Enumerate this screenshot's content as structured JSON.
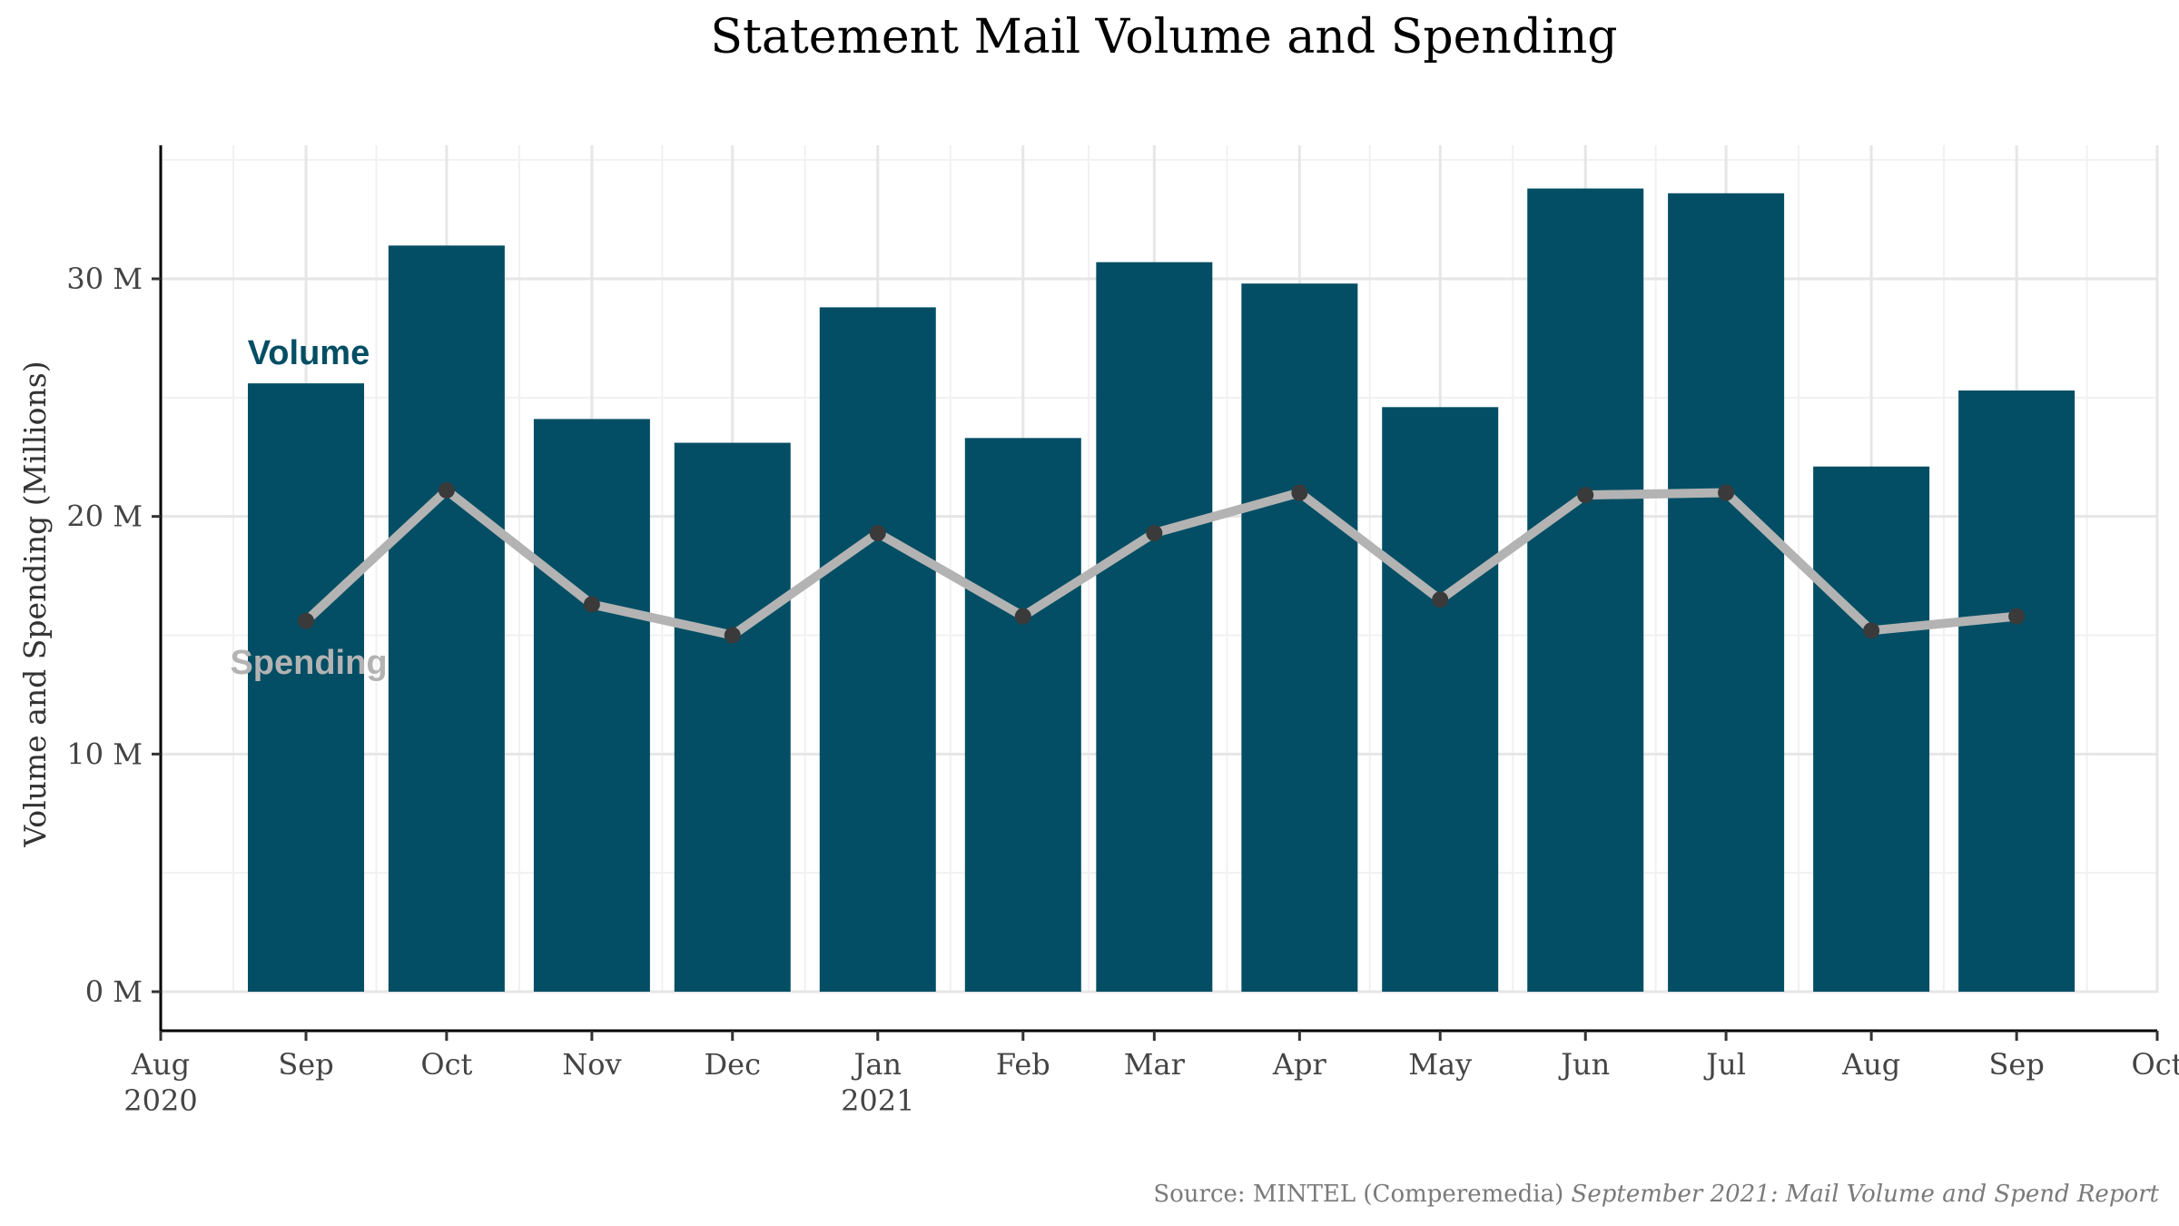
{
  "chart_data": {
    "type": "bar",
    "title": "Statement Mail Volume and Spending",
    "xlabel": "",
    "ylabel": "Volume and Spending (Millions)",
    "ylim": [
      0,
      35.5
    ],
    "x_range": [
      "2020-08-01",
      "2021-10-01"
    ],
    "grid": true,
    "x_ticks": [
      {
        "date": "2020-08-01",
        "label": "Aug",
        "sublabel": "2020"
      },
      {
        "date": "2020-09-01",
        "label": "Sep",
        "sublabel": ""
      },
      {
        "date": "2020-10-01",
        "label": "Oct",
        "sublabel": ""
      },
      {
        "date": "2020-11-01",
        "label": "Nov",
        "sublabel": ""
      },
      {
        "date": "2020-12-01",
        "label": "Dec",
        "sublabel": ""
      },
      {
        "date": "2021-01-01",
        "label": "Jan",
        "sublabel": "2021"
      },
      {
        "date": "2021-02-01",
        "label": "Feb",
        "sublabel": ""
      },
      {
        "date": "2021-03-01",
        "label": "Mar",
        "sublabel": ""
      },
      {
        "date": "2021-04-01",
        "label": "Apr",
        "sublabel": ""
      },
      {
        "date": "2021-05-01",
        "label": "May",
        "sublabel": ""
      },
      {
        "date": "2021-06-01",
        "label": "Jun",
        "sublabel": ""
      },
      {
        "date": "2021-07-01",
        "label": "Jul",
        "sublabel": ""
      },
      {
        "date": "2021-08-01",
        "label": "Aug",
        "sublabel": ""
      },
      {
        "date": "2021-09-01",
        "label": "Sep",
        "sublabel": ""
      },
      {
        "date": "2021-10-01",
        "label": "Oct",
        "sublabel": ""
      }
    ],
    "y_ticks": [
      {
        "value": 0,
        "label": "0 M"
      },
      {
        "value": 10,
        "label": "10 M"
      },
      {
        "value": 20,
        "label": "20 M"
      },
      {
        "value": 30,
        "label": "30 M"
      }
    ],
    "x": [
      "2020-09-01",
      "2020-10-01",
      "2020-11-01",
      "2020-12-01",
      "2021-01-01",
      "2021-02-01",
      "2021-03-01",
      "2021-04-01",
      "2021-05-01",
      "2021-06-01",
      "2021-07-01",
      "2021-08-01",
      "2021-09-01"
    ],
    "series": [
      {
        "name": "Volume",
        "kind": "bar",
        "color": "#034e64",
        "values": [
          25.6,
          31.4,
          24.1,
          23.1,
          28.8,
          23.3,
          30.7,
          29.8,
          24.6,
          33.8,
          33.6,
          22.1,
          25.3
        ]
      },
      {
        "name": "Spending",
        "kind": "line",
        "color": "#b3b3b3",
        "marker_color": "#3a3a3a",
        "values": [
          15.6,
          21.1,
          16.3,
          15.0,
          19.3,
          15.8,
          19.3,
          21.0,
          16.5,
          20.9,
          21.0,
          15.2,
          15.8
        ]
      }
    ],
    "source_prefix": "Source: MINTEL (Comperemedia) ",
    "source_italic": "September 2021: Mail Volume and Spend Report"
  }
}
